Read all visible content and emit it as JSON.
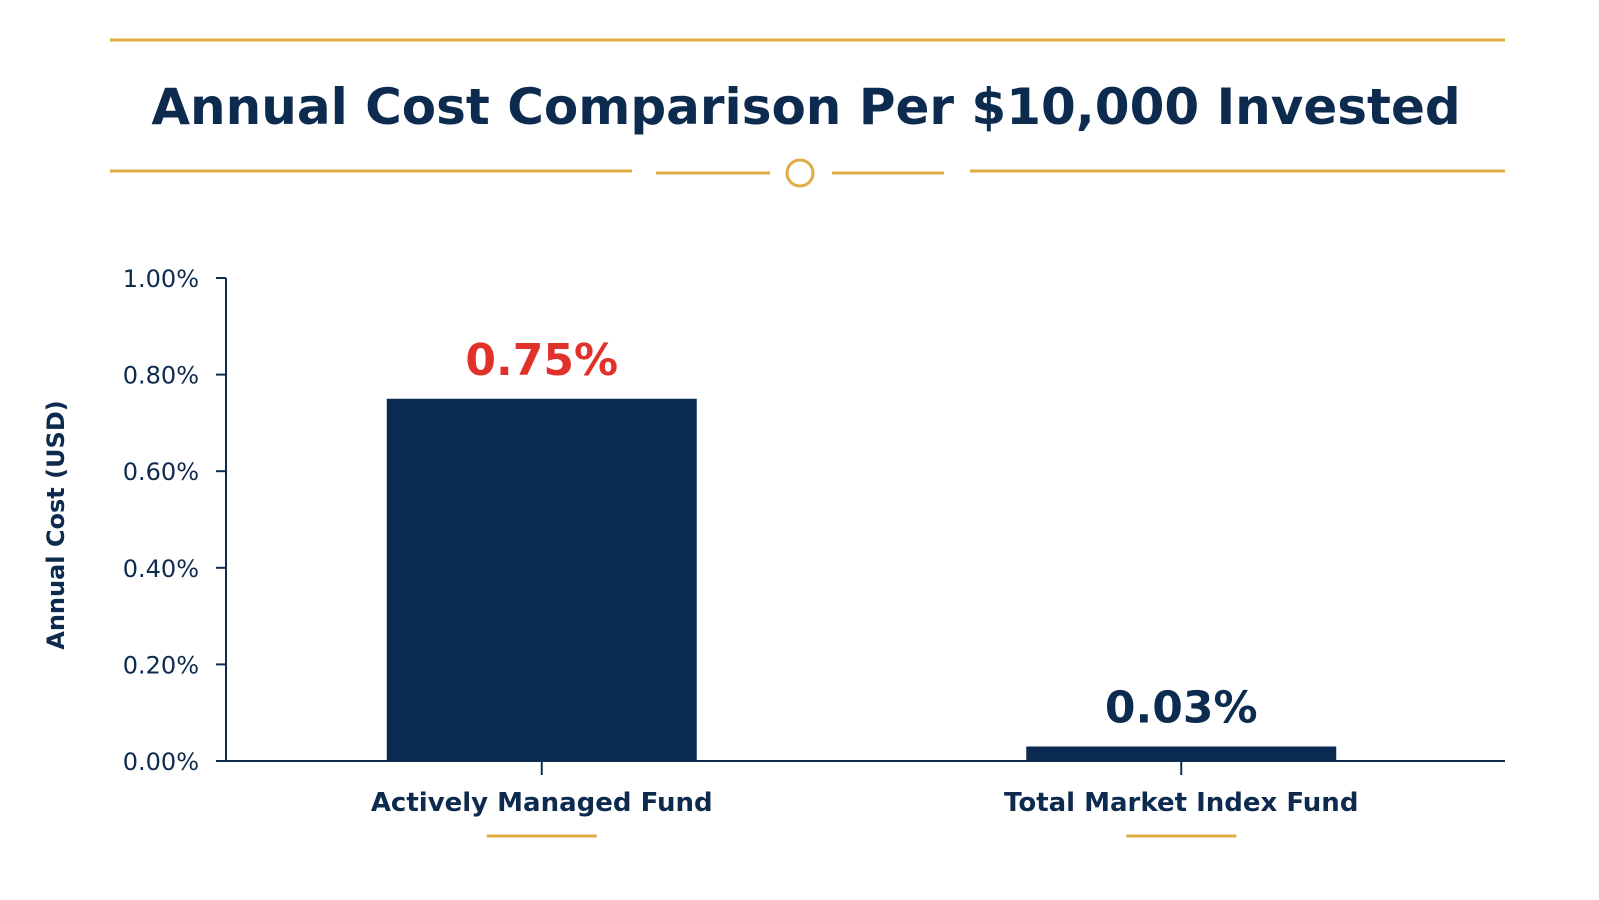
{
  "colors": {
    "navy": "#0b2a52",
    "gold": "#e0ad45",
    "accent_red": "#e0312b",
    "text": "#0d2a4f"
  },
  "chart_data": {
    "type": "bar",
    "title": "Annual Cost Comparison Per $10,000 Invested",
    "ylabel": "Annual Cost (USD)",
    "xlabel": "",
    "ylim": [
      0,
      1.0
    ],
    "yticks": [
      {
        "value": 0.0,
        "label": "0.00%"
      },
      {
        "value": 0.2,
        "label": "0.20%"
      },
      {
        "value": 0.4,
        "label": "0.40%"
      },
      {
        "value": 0.6,
        "label": "0.60%"
      },
      {
        "value": 0.8,
        "label": "0.80%"
      },
      {
        "value": 1.0,
        "label": "1.00%"
      }
    ],
    "categories": [
      "Actively Managed Fund",
      "Total Market Index Fund"
    ],
    "values": [
      0.75,
      0.03
    ],
    "value_labels": [
      "0.75%",
      "0.03%"
    ],
    "value_label_colors": [
      "#e0312b",
      "#0d2a4f"
    ],
    "grid": false,
    "legend": "none"
  }
}
